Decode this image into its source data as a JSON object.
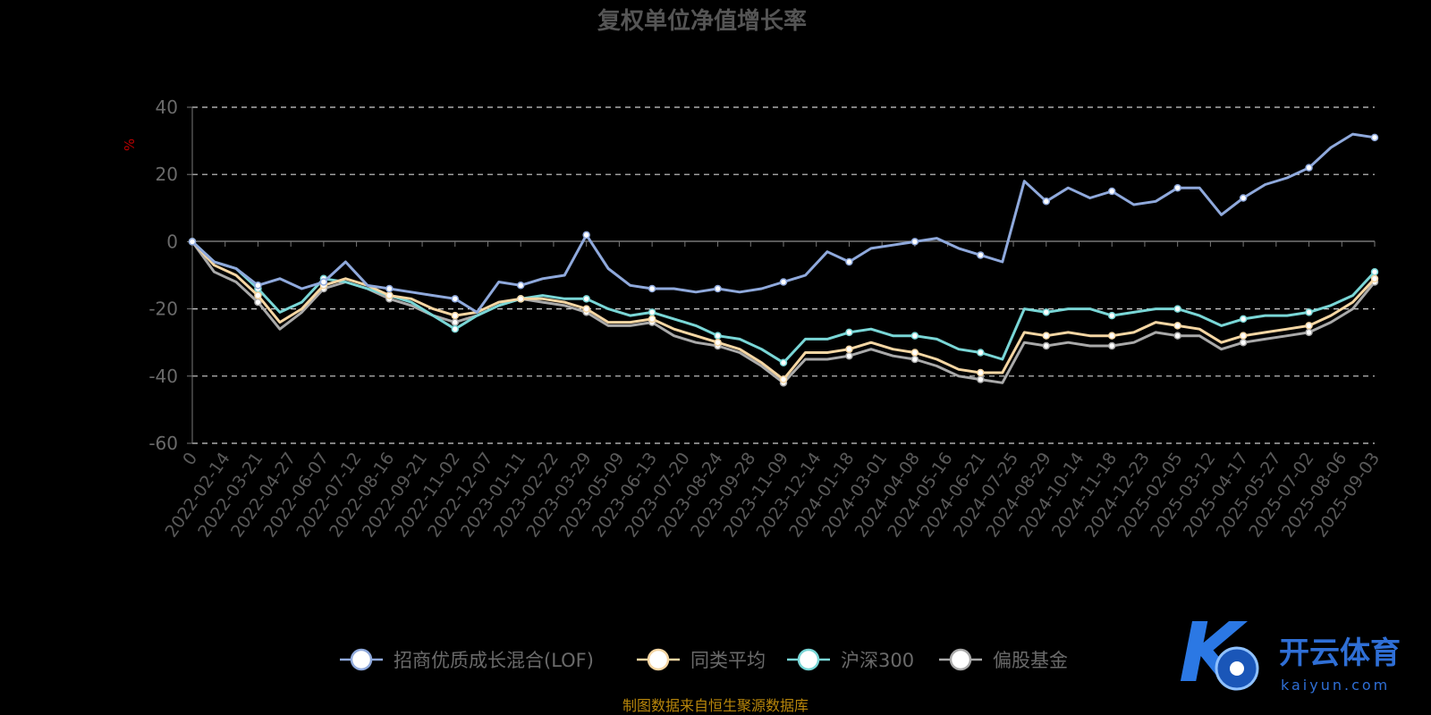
{
  "chart_data": {
    "type": "line",
    "title": "复权单位净值增长率",
    "ylabel": "%",
    "ylim": [
      -60,
      40
    ],
    "yticks": [
      40,
      20,
      0,
      -20,
      -40,
      -60
    ],
    "grid": true,
    "legend_position": "bottom",
    "x_tick_labels": [
      "0",
      "2022-02-14",
      "2022-03-21",
      "2022-04-27",
      "2022-06-07",
      "2022-07-12",
      "2022-08-16",
      "2022-09-21",
      "2022-11-02",
      "2022-12-07",
      "2023-01-11",
      "2023-02-22",
      "2023-03-29",
      "2023-05-09",
      "2023-06-13",
      "2023-07-20",
      "2023-08-24",
      "2023-09-28",
      "2023-11-09",
      "2023-12-14",
      "2024-01-18",
      "2024-03-01",
      "2024-04-08",
      "2024-05-16",
      "2024-06-21",
      "2024-07-25",
      "2024-08-29",
      "2024-10-14",
      "2024-11-18",
      "2024-12-23",
      "2025-02-05",
      "2025-03-12",
      "2025-04-17",
      "2025-05-27",
      "2025-07-02",
      "2025-08-06",
      "2025-09-03"
    ],
    "series": [
      {
        "name": "招商优质成长混合(LOF)",
        "color": "#8fa9dc",
        "values": [
          0,
          -6,
          -8,
          -13,
          -11,
          -14,
          -12,
          -6,
          -13,
          -14,
          -15,
          -16,
          -17,
          -21,
          -12,
          -13,
          -11,
          -10,
          2,
          -8,
          -13,
          -14,
          -14,
          -15,
          -14,
          -15,
          -14,
          -12,
          -10,
          -3,
          -6,
          -2,
          -1,
          0,
          1,
          -2,
          -4,
          -6,
          18,
          12,
          16,
          13,
          15,
          11,
          12,
          16,
          16,
          8,
          13,
          17,
          19,
          22,
          28,
          32,
          31
        ]
      },
      {
        "name": "同类平均",
        "color": "#f5d6a3",
        "values": [
          0,
          -7,
          -10,
          -16,
          -24,
          -20,
          -13,
          -11,
          -13,
          -16,
          -17,
          -20,
          -22,
          -21,
          -18,
          -17,
          -17,
          -18,
          -20,
          -24,
          -24,
          -23,
          -26,
          -28,
          -30,
          -32,
          -36,
          -41,
          -33,
          -33,
          -32,
          -30,
          -32,
          -33,
          -35,
          -38,
          -39,
          -39,
          -27,
          -28,
          -27,
          -28,
          -28,
          -27,
          -24,
          -25,
          -26,
          -30,
          -28,
          -27,
          -26,
          -25,
          -22,
          -18,
          -11
        ]
      },
      {
        "name": "沪深300",
        "color": "#79d6d6",
        "values": [
          0,
          -6,
          -8,
          -14,
          -21,
          -18,
          -11,
          -12,
          -14,
          -16,
          -18,
          -22,
          -26,
          -22,
          -19,
          -17,
          -16,
          -17,
          -17,
          -20,
          -22,
          -21,
          -23,
          -25,
          -28,
          -29,
          -32,
          -36,
          -29,
          -29,
          -27,
          -26,
          -28,
          -28,
          -29,
          -32,
          -33,
          -35,
          -20,
          -21,
          -20,
          -20,
          -22,
          -21,
          -20,
          -20,
          -22,
          -25,
          -23,
          -22,
          -22,
          -21,
          -19,
          -16,
          -9
        ]
      },
      {
        "name": "偏股基金",
        "color": "#a9a9a9",
        "values": [
          0,
          -9,
          -12,
          -18,
          -26,
          -21,
          -14,
          -12,
          -14,
          -17,
          -19,
          -22,
          -24,
          -22,
          -19,
          -17,
          -18,
          -19,
          -21,
          -25,
          -25,
          -24,
          -28,
          -30,
          -31,
          -33,
          -37,
          -42,
          -35,
          -35,
          -34,
          -32,
          -34,
          -35,
          -37,
          -40,
          -41,
          -42,
          -30,
          -31,
          -30,
          -31,
          -31,
          -30,
          -27,
          -28,
          -28,
          -32,
          -30,
          -29,
          -28,
          -27,
          -24,
          -20,
          -12
        ]
      }
    ]
  },
  "footer": {
    "source": "制图数据来自恒生聚源数据库"
  },
  "logo": {
    "name_cn": "开云体育",
    "name_en": "kaiyun.com"
  }
}
